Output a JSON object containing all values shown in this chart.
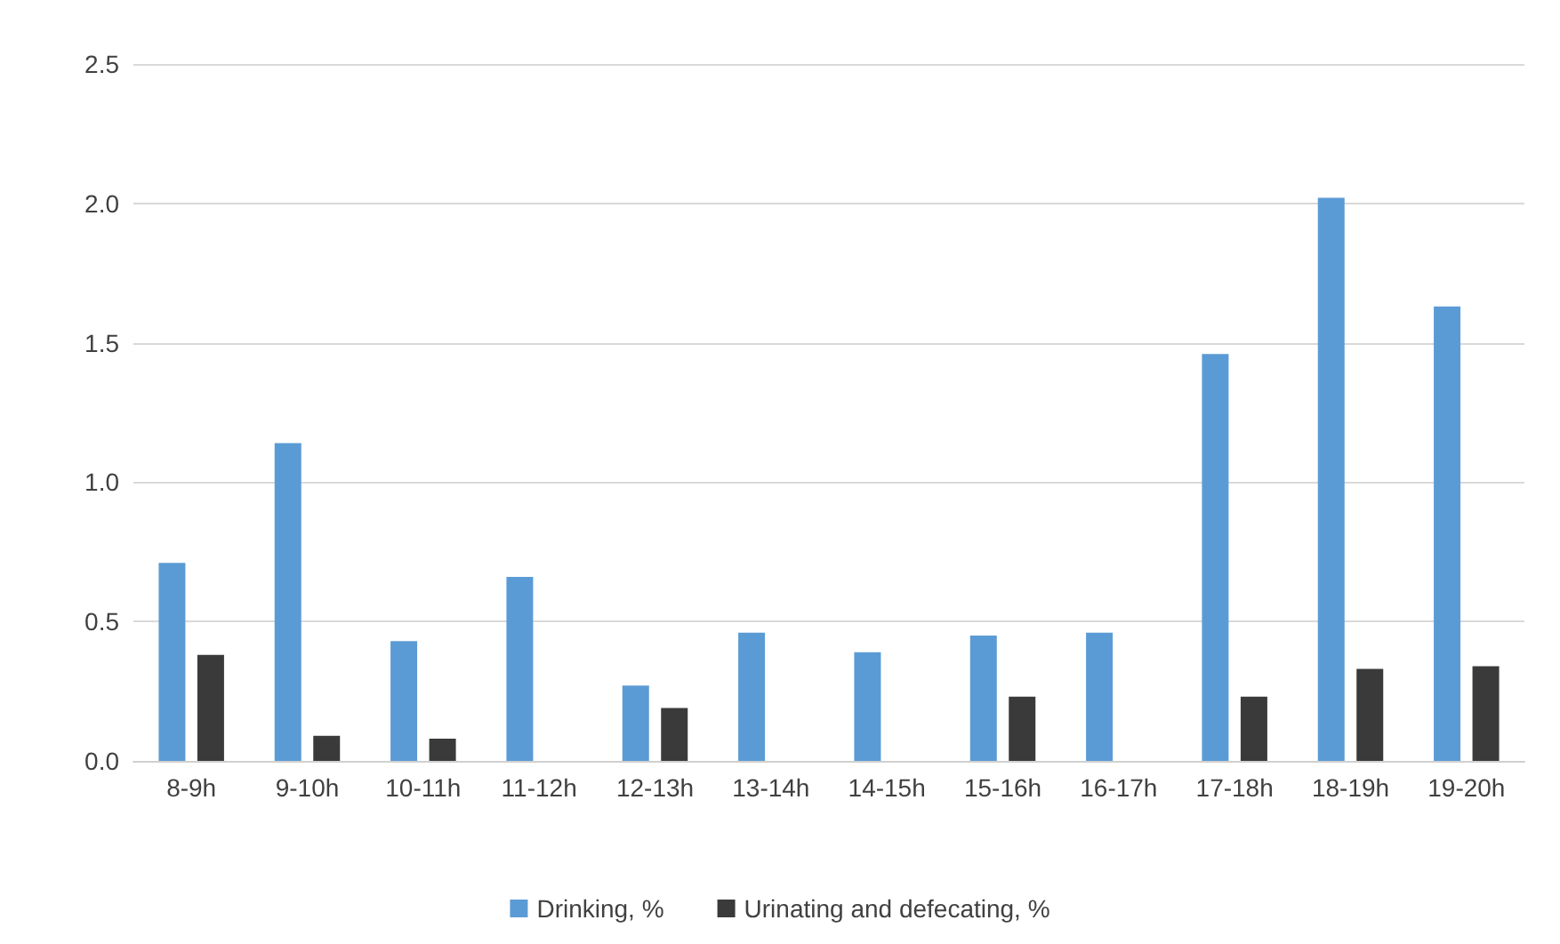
{
  "chart_data": {
    "type": "bar",
    "categories": [
      "8-9h",
      "9-10h",
      "10-11h",
      "11-12h",
      "12-13h",
      "13-14h",
      "14-15h",
      "15-16h",
      "16-17h",
      "17-18h",
      "18-19h",
      "19-20h"
    ],
    "series": [
      {
        "name": "Drinking, %",
        "color": "#5b9bd5",
        "values": [
          0.71,
          1.14,
          0.43,
          0.66,
          0.27,
          0.46,
          0.39,
          0.45,
          0.46,
          1.46,
          2.02,
          1.63
        ]
      },
      {
        "name": "Urinating and defecating, %",
        "color": "#3a3a3a",
        "values": [
          0.38,
          0.09,
          0.08,
          0,
          0.19,
          0,
          0,
          0.23,
          0,
          0.23,
          0.33,
          0.34
        ]
      }
    ],
    "ylim": [
      0,
      2.5
    ],
    "yticks": [
      {
        "value": 0,
        "label": "0.0"
      },
      {
        "value": 0.5,
        "label": "0.5"
      },
      {
        "value": 1,
        "label": "1.0"
      },
      {
        "value": 1.5,
        "label": "1.5"
      },
      {
        "value": 2,
        "label": "2.0"
      },
      {
        "value": 2.5,
        "label": "2.5"
      }
    ],
    "grid": "y",
    "legend": "bottom"
  }
}
